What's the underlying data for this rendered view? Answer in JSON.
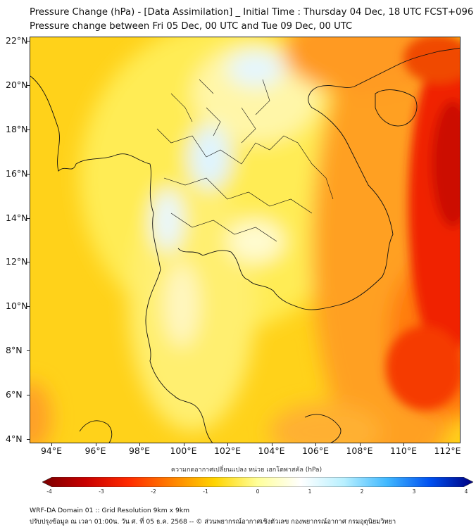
{
  "title": {
    "line1": "Pressure Change (hPa) - [Data Assimilation] _ Initial Time : Thursday 04 Dec, 18 UTC FCST+096",
    "line2": "Pressure change between Fri 05 Dec, 00 UTC and Tue 09 Dec, 00 UTC"
  },
  "map": {
    "lat_labels": [
      "22°N",
      "20°N",
      "18°N",
      "16°N",
      "14°N",
      "12°N",
      "10°N",
      "8°N",
      "6°N",
      "4°N"
    ],
    "lon_labels": [
      "94°E",
      "96°E",
      "98°E",
      "100°E",
      "102°E",
      "104°E",
      "106°E",
      "108°E",
      "110°E",
      "112°E"
    ]
  },
  "colorbar": {
    "title": "ความกดอากาศเปลี่ยนแปลง หน่วย เฮกโตพาสคัล (hPa)",
    "labels": [
      "-4",
      "-3",
      "-2",
      "-1",
      "0",
      "1",
      "2",
      "3",
      "4"
    ],
    "colors": [
      "#7a0000",
      "#c80000",
      "#ff2a00",
      "#ff8000",
      "#ffd400",
      "#ffff9a",
      "#ffffff",
      "#b8f0ff",
      "#40b8ff",
      "#0050f0",
      "#000080"
    ]
  },
  "footer": {
    "line1": "WRF-DA Domain 01 :: Grid Resolution 9km x 9km",
    "line2": "ปรับปรุงข้อมูล ณ เวลา 01:00น. วัน ศ. ที่ 05 ธ.ค. 2568 -- © ส่วนพยากรณ์อากาศเชิงตัวเลข กองพยากรณ์อากาศ กรมอุตุนิยมวิทยา"
  }
}
